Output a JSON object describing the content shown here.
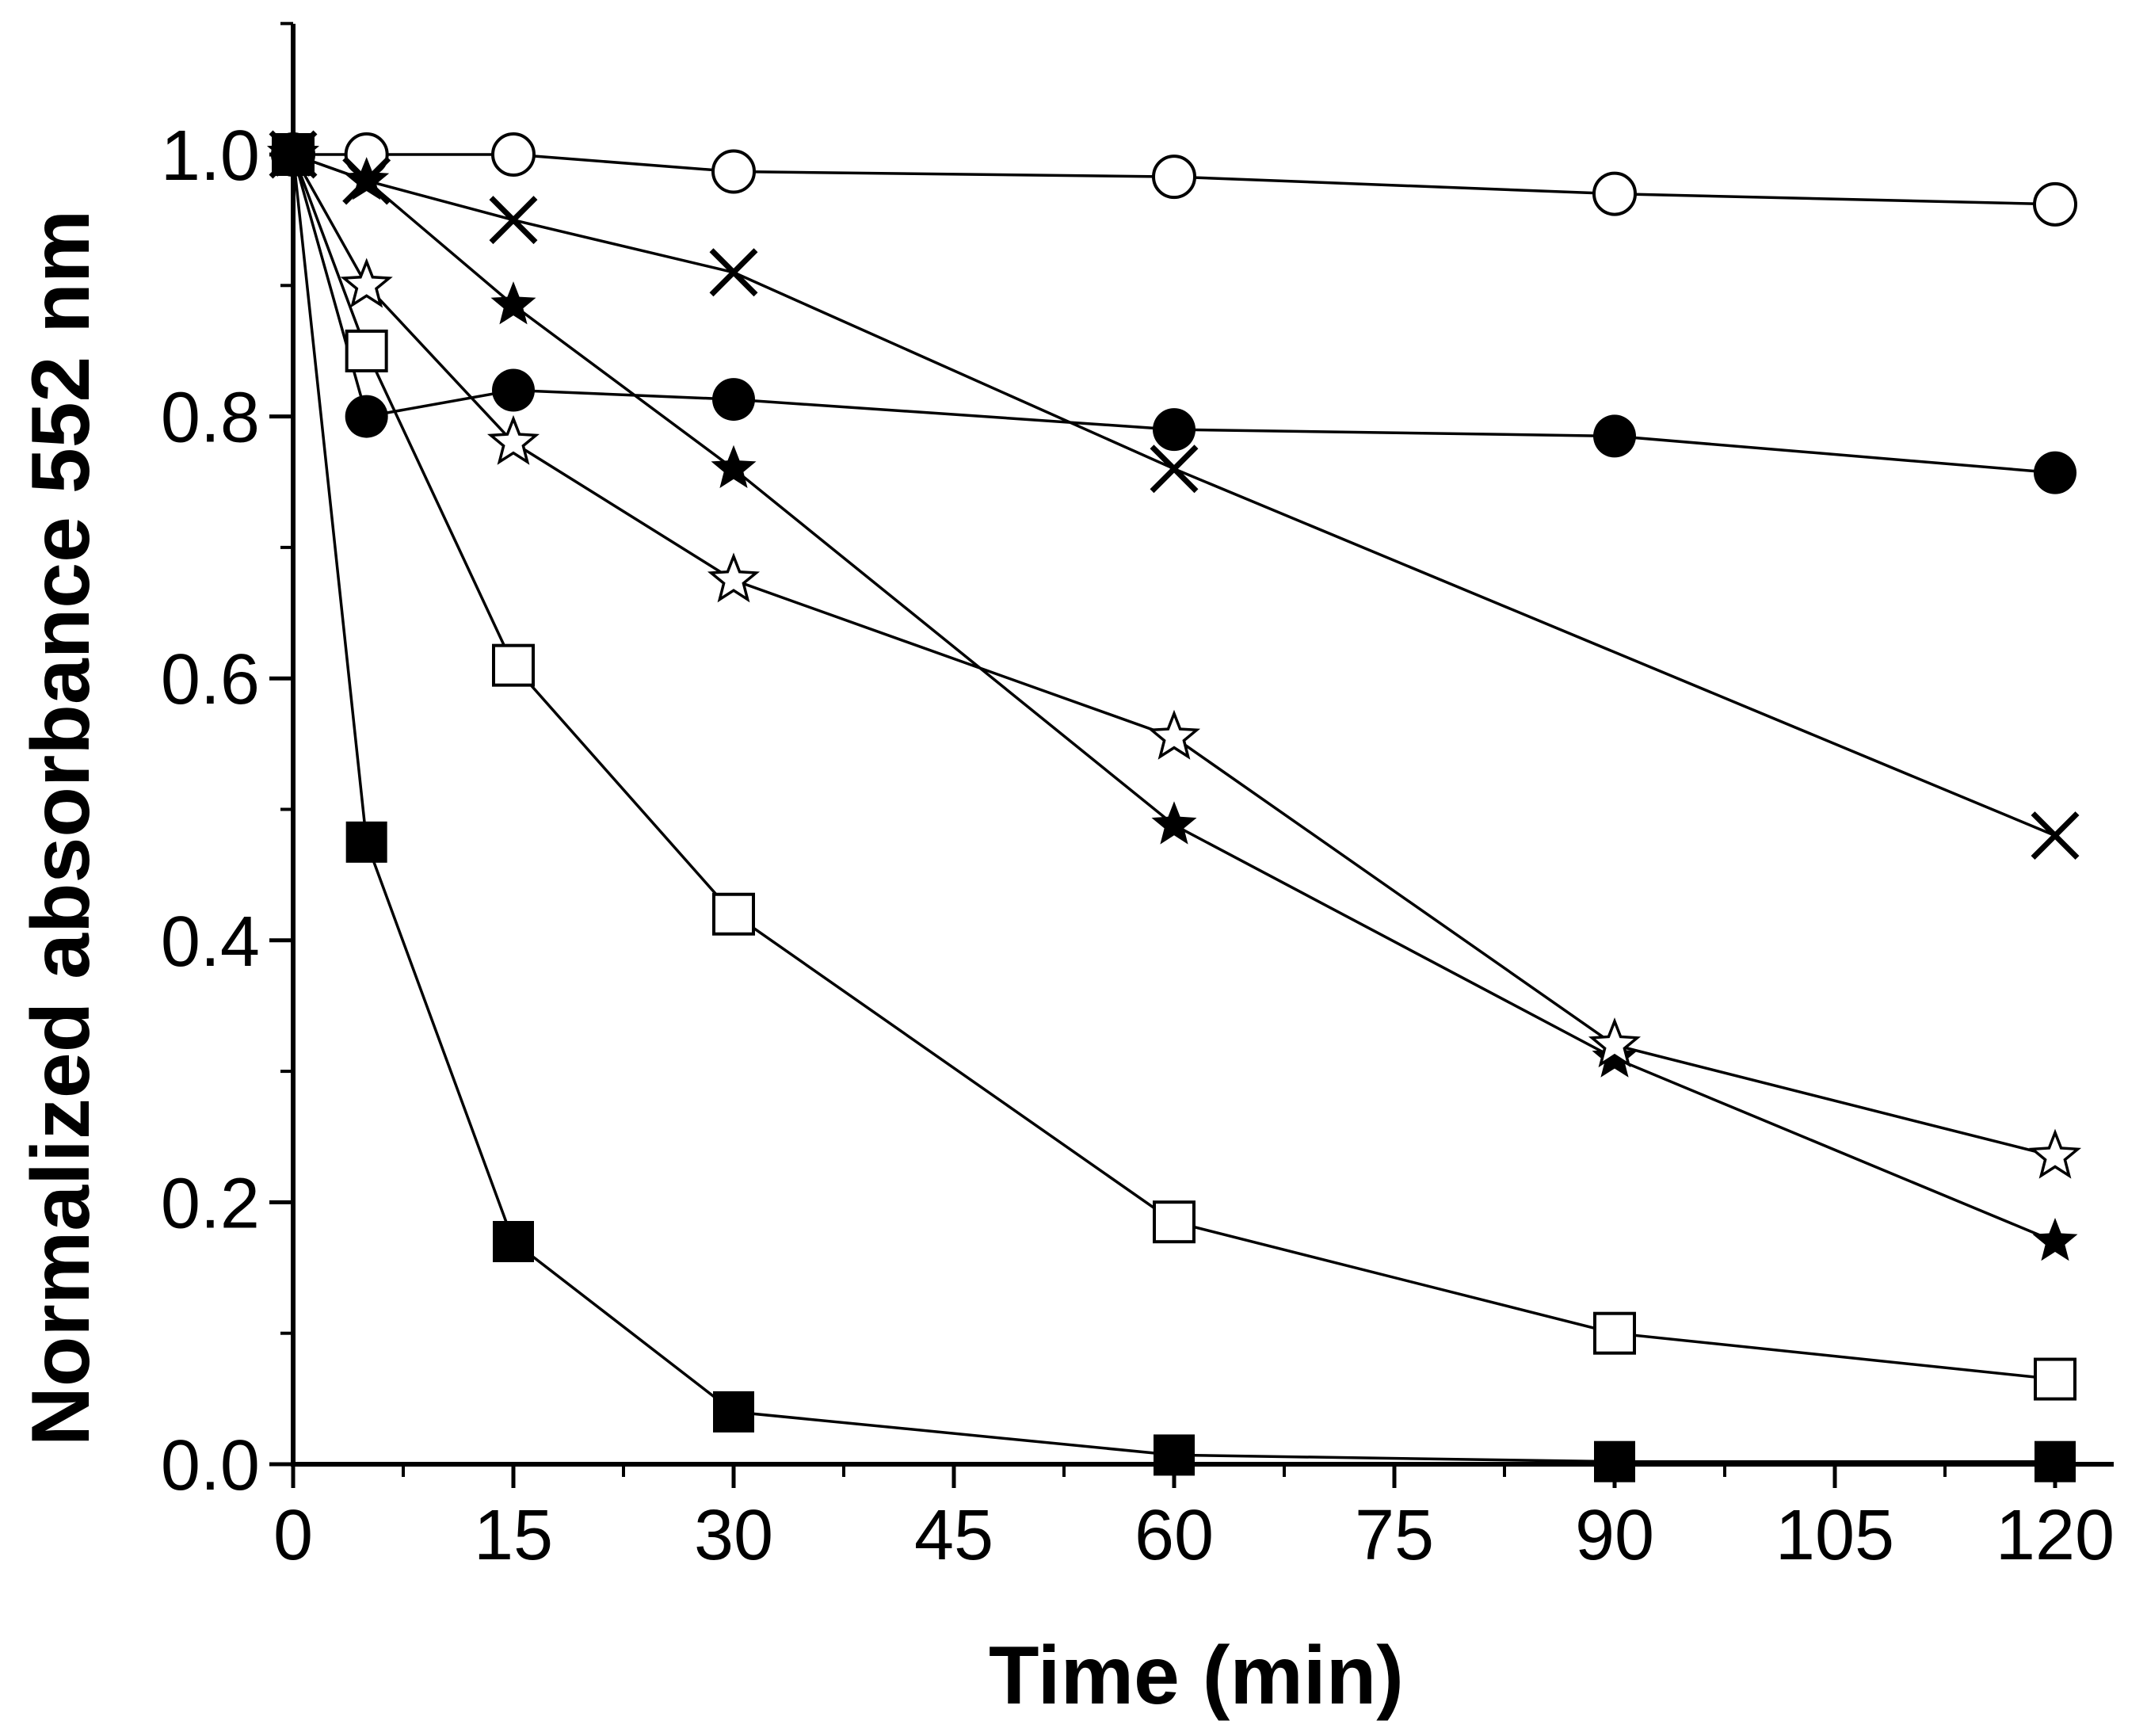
{
  "chart_data": {
    "type": "line",
    "title": "",
    "xlabel": "Time (min)",
    "ylabel": "Normalized absorbance 552 nm",
    "xlim": [
      0,
      124
    ],
    "ylim": [
      0,
      1.1
    ],
    "xticks": [
      0,
      15,
      30,
      45,
      60,
      75,
      90,
      105,
      120
    ],
    "xtick_labels": [
      "0",
      "15",
      "30",
      "45",
      "60",
      "75",
      "90",
      "105",
      "120"
    ],
    "yticks": [
      0.0,
      0.2,
      0.4,
      0.6,
      0.8,
      1.0
    ],
    "ytick_labels": [
      "0.0",
      "0.2",
      "0.4",
      "0.6",
      "0.8",
      "1.0"
    ],
    "grid": false,
    "legend": "none",
    "x": [
      0,
      5,
      15,
      30,
      60,
      90,
      120
    ],
    "series": [
      {
        "name": "open circle",
        "marker": "open-circle",
        "values": [
          1.0,
          1.0,
          1.0,
          0.987,
          0.983,
          0.97,
          0.962
        ]
      },
      {
        "name": "cross",
        "marker": "cross",
        "values": [
          1.0,
          0.98,
          0.95,
          0.91,
          0.76,
          null,
          0.48
        ]
      },
      {
        "name": "filled circle",
        "marker": "filled-circle",
        "values": [
          1.0,
          0.8,
          0.82,
          0.813,
          0.79,
          0.785,
          0.757
        ]
      },
      {
        "name": "filled star",
        "marker": "filled-star",
        "values": [
          1.0,
          0.98,
          0.885,
          0.76,
          0.488,
          0.31,
          0.17
        ]
      },
      {
        "name": "open star",
        "marker": "open-star",
        "values": [
          1.0,
          0.9,
          0.78,
          0.675,
          0.555,
          0.32,
          0.235
        ]
      },
      {
        "name": "open square",
        "marker": "open-square",
        "values": [
          1.0,
          0.85,
          0.61,
          0.42,
          0.185,
          0.1,
          0.065
        ]
      },
      {
        "name": "filled square",
        "marker": "filled-square",
        "values": [
          1.0,
          0.475,
          0.17,
          0.04,
          0.007,
          0.002,
          0.002
        ]
      }
    ]
  }
}
